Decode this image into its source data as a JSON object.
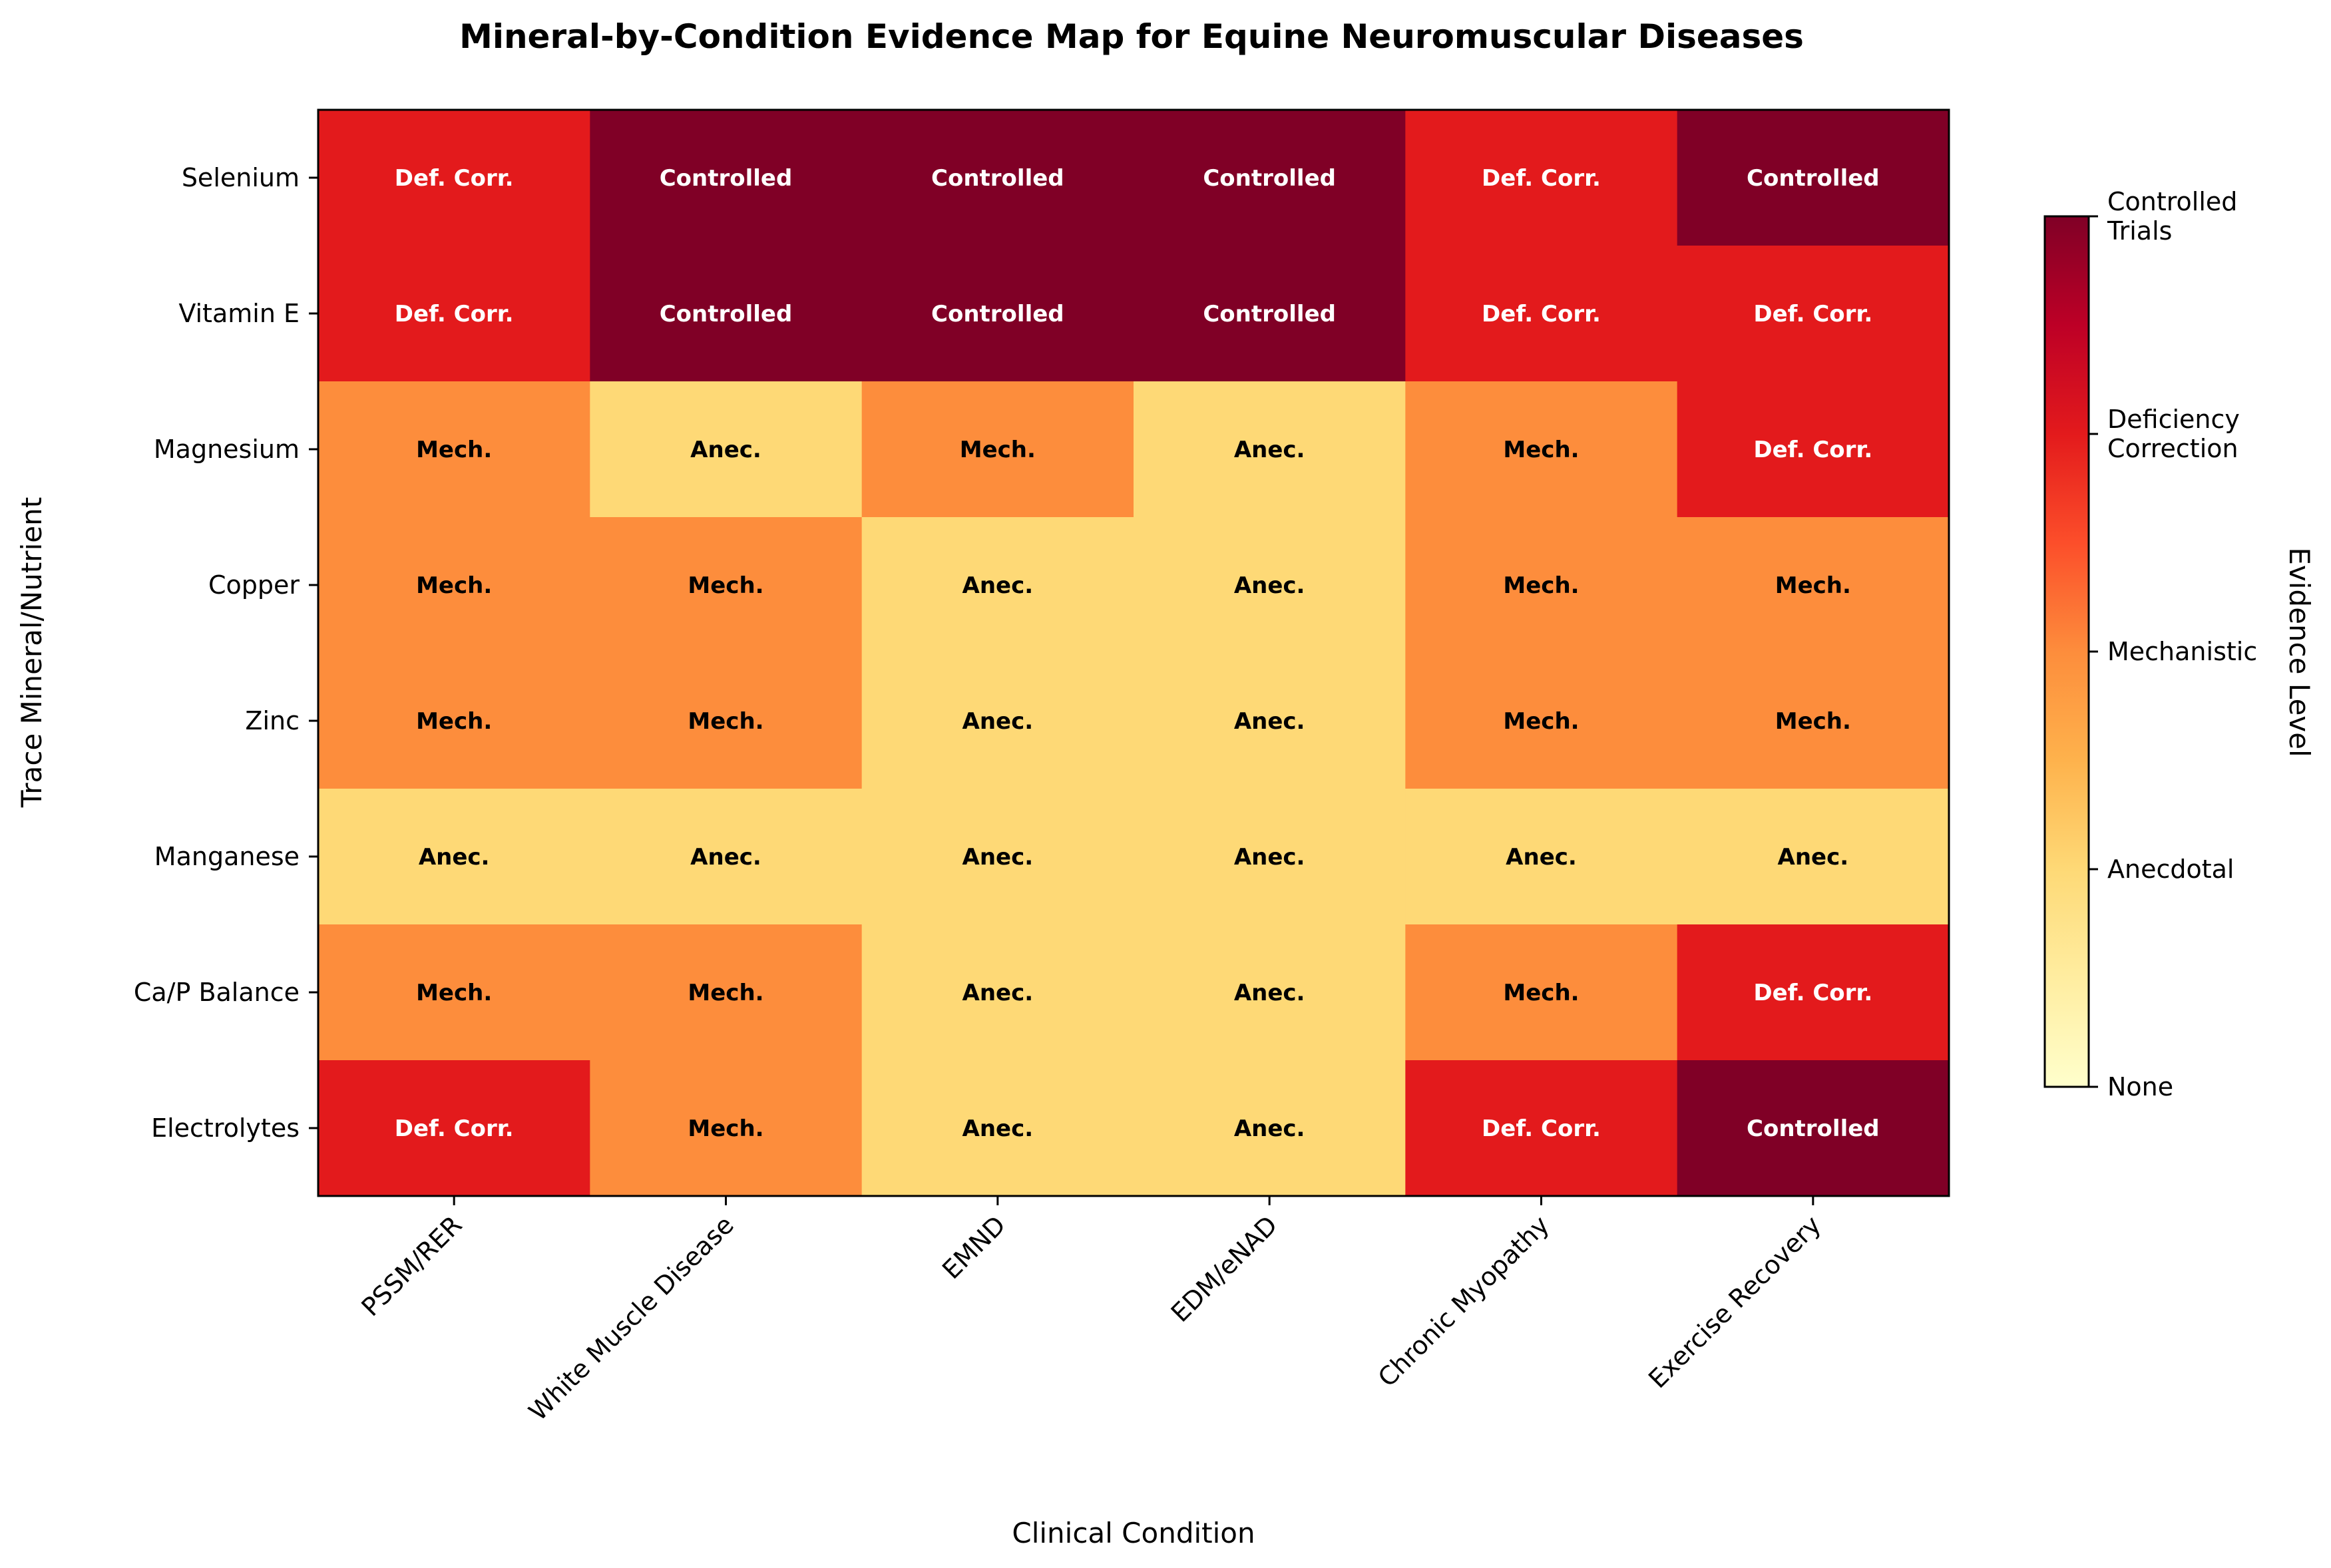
{
  "chart_data": {
    "type": "heatmap",
    "title": "Mineral-by-Condition Evidence Map for Equine Neuromuscular Diseases",
    "xlabel": "Clinical Condition",
    "ylabel": "Trace Mineral/Nutrient",
    "x_categories": [
      "PSSM/RER",
      "White Muscle Disease",
      "EMND",
      "EDM/eNAD",
      "Chronic Myopathy",
      "Exercise Recovery"
    ],
    "y_categories": [
      "Selenium",
      "Vitamin E",
      "Magnesium",
      "Copper",
      "Zinc",
      "Manganese",
      "Ca/P Balance",
      "Electrolytes"
    ],
    "values": [
      [
        3,
        4,
        4,
        4,
        3,
        4
      ],
      [
        3,
        4,
        4,
        4,
        3,
        3
      ],
      [
        2,
        1,
        2,
        1,
        2,
        3
      ],
      [
        2,
        2,
        1,
        1,
        2,
        2
      ],
      [
        2,
        2,
        1,
        1,
        2,
        2
      ],
      [
        1,
        1,
        1,
        1,
        1,
        1
      ],
      [
        2,
        2,
        1,
        1,
        2,
        3
      ],
      [
        3,
        2,
        1,
        1,
        3,
        4
      ]
    ],
    "level_short_labels": {
      "1": "Anec.",
      "2": "Mech.",
      "3": "Def. Corr.",
      "4": "Controlled"
    },
    "colorbar": {
      "label": "Evidence Level",
      "range": [
        0,
        4
      ],
      "colormap": "YlOrRd",
      "ticks": [
        {
          "value": 0,
          "label": [
            "None"
          ]
        },
        {
          "value": 1,
          "label": [
            "Anecdotal"
          ]
        },
        {
          "value": 2,
          "label": [
            "Mechanistic"
          ]
        },
        {
          "value": 3,
          "label": [
            "Deficiency",
            "Correction"
          ]
        },
        {
          "value": 4,
          "label": [
            "Controlled",
            "Trials"
          ]
        }
      ]
    },
    "colors": {
      "level_1": "#fed976",
      "level_2": "#fd8d3c",
      "level_3": "#e31a1c",
      "level_4": "#800026"
    },
    "text_colors": {
      "dark_bg": "#ffffff",
      "light_bg": "#000000"
    }
  }
}
